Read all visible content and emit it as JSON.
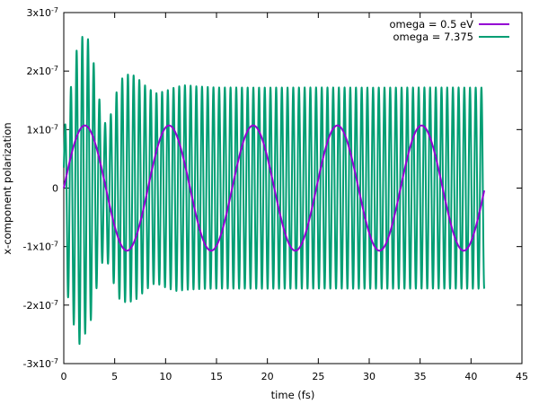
{
  "chart_data": {
    "type": "line",
    "title": "",
    "xlabel": "time (fs)",
    "ylabel": "x-component polarization",
    "xlim": [
      0,
      45
    ],
    "ylim": [
      -3e-07,
      3e-07
    ],
    "grid": false,
    "legend_position": "top-right",
    "x_ticks": [
      0,
      5,
      10,
      15,
      20,
      25,
      30,
      35,
      40,
      45
    ],
    "x_tick_labels": [
      "0",
      "5",
      "10",
      "15",
      "20",
      "25",
      "30",
      "35",
      "40",
      "45"
    ],
    "y_ticks": [
      -3e-07,
      -2e-07,
      -1e-07,
      0,
      1e-07,
      2e-07,
      3e-07
    ],
    "y_tick_labels": [
      "-3x10-7",
      "-2x10-7",
      "-1x10-7",
      "0",
      "1x10-7",
      "2x10-7",
      "3x10-7"
    ],
    "series": [
      {
        "name": "omega = 0.5 eV",
        "color": "#9400d3",
        "description_form": "sinusoid",
        "amplitude": 1.07e-07,
        "period_fs": 8.27,
        "phase_shift_fs": 0,
        "x_range": [
          0,
          41.3
        ],
        "x": [
          0,
          2.07,
          4.14,
          6.2,
          8.27,
          10.34,
          12.41,
          14.47,
          16.54,
          18.61,
          20.68,
          22.74,
          24.81,
          26.88,
          28.95,
          31.01,
          33.08,
          35.15,
          37.22,
          39.28,
          41.3
        ],
        "y": [
          0,
          1.07e-07,
          0,
          -1.07e-07,
          0,
          1.07e-07,
          0,
          -1.07e-07,
          0,
          1.07e-07,
          0,
          -1.07e-07,
          0,
          1.07e-07,
          0,
          -1.07e-07,
          0,
          1.07e-07,
          0,
          -1.07e-07,
          -1e-08
        ]
      },
      {
        "name": "omega = 7.375",
        "color": "#009e73",
        "description_form": "oscillation with early beating envelope",
        "period_fs": 0.56,
        "x_range": [
          0,
          41.3
        ],
        "envelope_max": [
          [
            0,
            1e-07
          ],
          [
            0.4,
            1.25e-07
          ],
          [
            1.0,
            2.2e-07
          ],
          [
            1.6,
            2.55e-07
          ],
          [
            2.2,
            2.65e-07
          ],
          [
            2.8,
            2.3e-07
          ],
          [
            3.4,
            1.6e-07
          ],
          [
            4.0,
            1.1e-07
          ],
          [
            4.6,
            1.25e-07
          ],
          [
            5.2,
            1.65e-07
          ],
          [
            5.8,
            1.9e-07
          ],
          [
            6.4,
            1.95e-07
          ],
          [
            7.0,
            1.92e-07
          ],
          [
            7.6,
            1.82e-07
          ],
          [
            8.2,
            1.72e-07
          ],
          [
            9.0,
            1.62e-07
          ],
          [
            10.0,
            1.66e-07
          ],
          [
            11.0,
            1.73e-07
          ],
          [
            12.0,
            1.76e-07
          ],
          [
            13.0,
            1.74e-07
          ],
          [
            15.0,
            1.72e-07
          ],
          [
            41.3,
            1.72e-07
          ]
        ],
        "envelope_min": [
          [
            0,
            -3e-08
          ],
          [
            0.4,
            -1.85e-07
          ],
          [
            1.0,
            -2.35e-07
          ],
          [
            1.6,
            -2.7e-07
          ],
          [
            2.2,
            -2.45e-07
          ],
          [
            2.8,
            -2.2e-07
          ],
          [
            3.4,
            -1.5e-07
          ],
          [
            4.0,
            -1.15e-07
          ],
          [
            4.6,
            -1.4e-07
          ],
          [
            5.2,
            -1.85e-07
          ],
          [
            5.8,
            -1.95e-07
          ],
          [
            6.4,
            -1.95e-07
          ],
          [
            7.0,
            -1.92e-07
          ],
          [
            7.6,
            -1.82e-07
          ],
          [
            8.2,
            -1.72e-07
          ],
          [
            9.0,
            -1.62e-07
          ],
          [
            10.0,
            -1.7e-07
          ],
          [
            11.0,
            -1.76e-07
          ],
          [
            12.0,
            -1.74e-07
          ],
          [
            13.0,
            -1.73e-07
          ],
          [
            15.0,
            -1.72e-07
          ],
          [
            41.3,
            -1.72e-07
          ]
        ]
      }
    ]
  }
}
